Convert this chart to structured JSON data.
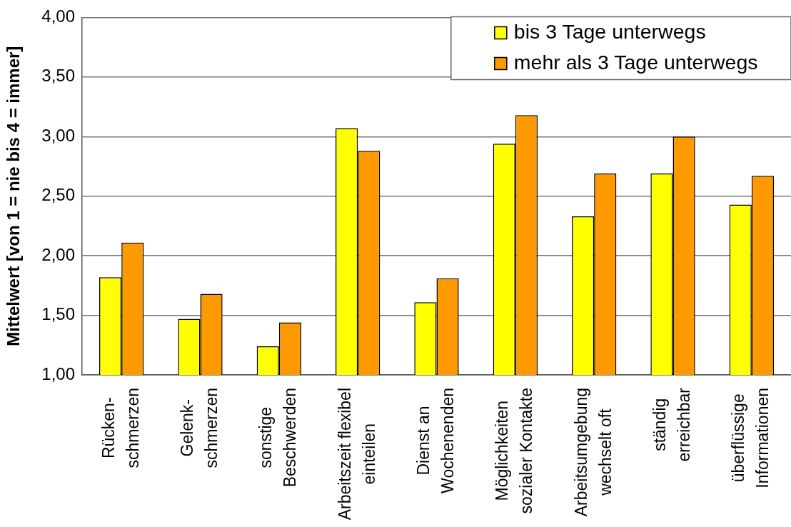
{
  "chart_data": {
    "type": "bar",
    "ylabel": "Mittelwert [von 1 = nie bis 4 = immer]",
    "categories": [
      "Rücken-\nschmerzen",
      "Gelenk-\nschmerzen",
      "sonstige\nBeschwerden",
      "Arbeitszeit flexibel\neinteilen",
      "Dienst an\nWochenenden",
      "Möglichkeiten\nsozialer Kontakte",
      "Arbeitsumgebung\nwechselt oft",
      "ständig\nerreichbar",
      "überflüssige\nInformationen"
    ],
    "series": [
      {
        "name": "bis 3 Tage unterwegs",
        "color": "#ffff00",
        "values": [
          1.82,
          1.47,
          1.24,
          3.07,
          1.61,
          2.94,
          2.33,
          2.69,
          2.43
        ]
      },
      {
        "name": "mehr als 3 Tage unterwegs",
        "color": "#ff9900",
        "values": [
          2.11,
          1.68,
          1.44,
          2.88,
          1.81,
          3.18,
          2.69,
          3.0,
          2.67
        ]
      }
    ],
    "ylim": [
      1,
      4
    ],
    "yticks": [
      {
        "value": 1,
        "label": "1,00"
      },
      {
        "value": 1.5,
        "label": "1,50"
      },
      {
        "value": 2,
        "label": "2,00"
      },
      {
        "value": 2.5,
        "label": "2,50"
      },
      {
        "value": 3,
        "label": "3,00"
      },
      {
        "value": 3.5,
        "label": "3,50"
      },
      {
        "value": 4,
        "label": "4,00"
      }
    ],
    "grid": "y",
    "legend": "top right"
  }
}
